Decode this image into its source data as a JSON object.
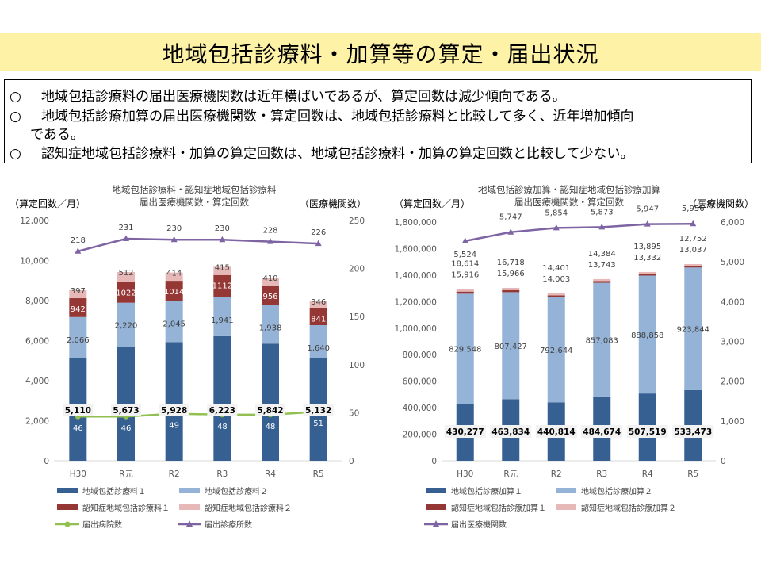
{
  "header": {
    "title": "地域包括診療料・加算等の算定・届出状況"
  },
  "summary": {
    "bullet": "○",
    "lines": [
      "地域包括診療料の届出医療機関数は近年横ばいであるが、算定回数は減少傾向である。",
      "地域包括診療加算の届出医療機関数・算定回数は、地域包括診療料と比較して多く、近年増加傾向",
      "である。",
      "認知症地域包括診療料・加算の算定回数は、地域包括診療料・加算の算定回数と比較して少ない。"
    ]
  },
  "colors": {
    "s1": "#376092",
    "s2": "#95b3d7",
    "s3": "#953735",
    "s4": "#e6b9b8",
    "line_green": "#92c050",
    "line_purple": "#7e64a2"
  },
  "chart_data": [
    {
      "type": "bar",
      "stacked": true,
      "title": "地域包括診療料・認知症地域包括診療料",
      "subtitle": "届出医療機関数・算定回数",
      "ylabel_left": "（算定回数／月）",
      "ylabel_right": "（医療機関数）",
      "ylim_left": [
        0,
        12000
      ],
      "ylim_right": [
        0,
        250
      ],
      "yticks_left": [
        "0",
        "2,000",
        "4,000",
        "6,000",
        "8,000",
        "10,000",
        "12,000"
      ],
      "yticks_right": [
        "0",
        "50",
        "100",
        "150",
        "200",
        "250"
      ],
      "categories": [
        "H30",
        "R元",
        "R2",
        "R3",
        "R4",
        "R5"
      ],
      "series": [
        {
          "name": "地域包括診療料１",
          "values": [
            5110,
            5673,
            5928,
            6223,
            5842,
            5132
          ],
          "labels": [
            "5,110",
            "5,673",
            "5,928",
            "6,223",
            "5,842",
            "5,132"
          ]
        },
        {
          "name": "地域包括診療料２",
          "values": [
            2066,
            2220,
            2045,
            1941,
            1938,
            1640
          ],
          "labels": [
            "2,066",
            "2,220",
            "2,045",
            "1,941",
            "1,938",
            "1,640"
          ]
        },
        {
          "name": "認知症地域包括診療料１",
          "values": [
            942,
            1022,
            1014,
            1112,
            956,
            841
          ],
          "labels": [
            "942",
            "1022",
            "1014",
            "1112",
            "956",
            "841"
          ]
        },
        {
          "name": "認知症地域包括診療料２",
          "values": [
            397,
            512,
            414,
            415,
            410,
            346
          ],
          "labels": [
            "397",
            "512",
            "414",
            "415",
            "410",
            "346"
          ]
        }
      ],
      "lines": [
        {
          "name": "届出病院数",
          "axis": "right",
          "values": [
            46,
            46,
            49,
            48,
            48,
            51
          ],
          "labels": [
            "46",
            "46",
            "49",
            "48",
            "48",
            "51"
          ]
        },
        {
          "name": "届出診療所数",
          "axis": "right",
          "values": [
            218,
            231,
            230,
            230,
            228,
            226
          ],
          "labels": [
            "218",
            "231",
            "230",
            "230",
            "228",
            "226"
          ]
        }
      ]
    },
    {
      "type": "bar",
      "stacked": true,
      "title": "地域包括診療加算・認知症地域包括診療加算",
      "subtitle": "届出医療機関数・算定回数",
      "ylabel_left": "（算定回数／月）",
      "ylabel_right": "（医療機関数）",
      "ylim_left": [
        0,
        1800000
      ],
      "ylim_right": [
        0,
        6000
      ],
      "yticks_left": [
        "0",
        "200,000",
        "400,000",
        "600,000",
        "800,000",
        "1,000,000",
        "1,200,000",
        "1,400,000",
        "1,600,000",
        "1,800,000"
      ],
      "yticks_right": [
        "0",
        "1,000",
        "2,000",
        "3,000",
        "4,000",
        "5,000",
        "6,000"
      ],
      "categories": [
        "H30",
        "R元",
        "R2",
        "R3",
        "R4",
        "R5"
      ],
      "series": [
        {
          "name": "地域包括診療加算１",
          "values": [
            430277,
            463834,
            440814,
            484674,
            507519,
            533473
          ],
          "labels": [
            "430,277",
            "463,834",
            "440,814",
            "484,674",
            "507,519",
            "533,473"
          ]
        },
        {
          "name": "地域包括診療加算２",
          "values": [
            829548,
            807427,
            792644,
            857083,
            888858,
            923844
          ],
          "labels": [
            "829,548",
            "807,427",
            "792,644",
            "857,083",
            "888,858",
            "923,844"
          ]
        },
        {
          "name": "認知症地域包括診療加算１",
          "values": [
            15916,
            15966,
            14003,
            13743,
            13332,
            13037
          ],
          "labels": [
            "15,916",
            "15,966",
            "14,003",
            "13,743",
            "13,332",
            "13,037"
          ]
        },
        {
          "name": "認知症地域包括診療加算２",
          "values": [
            18614,
            16718,
            14401,
            14384,
            13895,
            12752
          ],
          "labels": [
            "18,614",
            "16,718",
            "14,401",
            "14,384",
            "13,895",
            "12,752"
          ]
        }
      ],
      "lines": [
        {
          "name": "届出医療機関数",
          "axis": "right",
          "values": [
            5524,
            5747,
            5854,
            5873,
            5947,
            5956
          ],
          "labels": [
            "5,524",
            "5,747",
            "5,854",
            "5,873",
            "5,947",
            "5,956"
          ]
        }
      ]
    }
  ]
}
